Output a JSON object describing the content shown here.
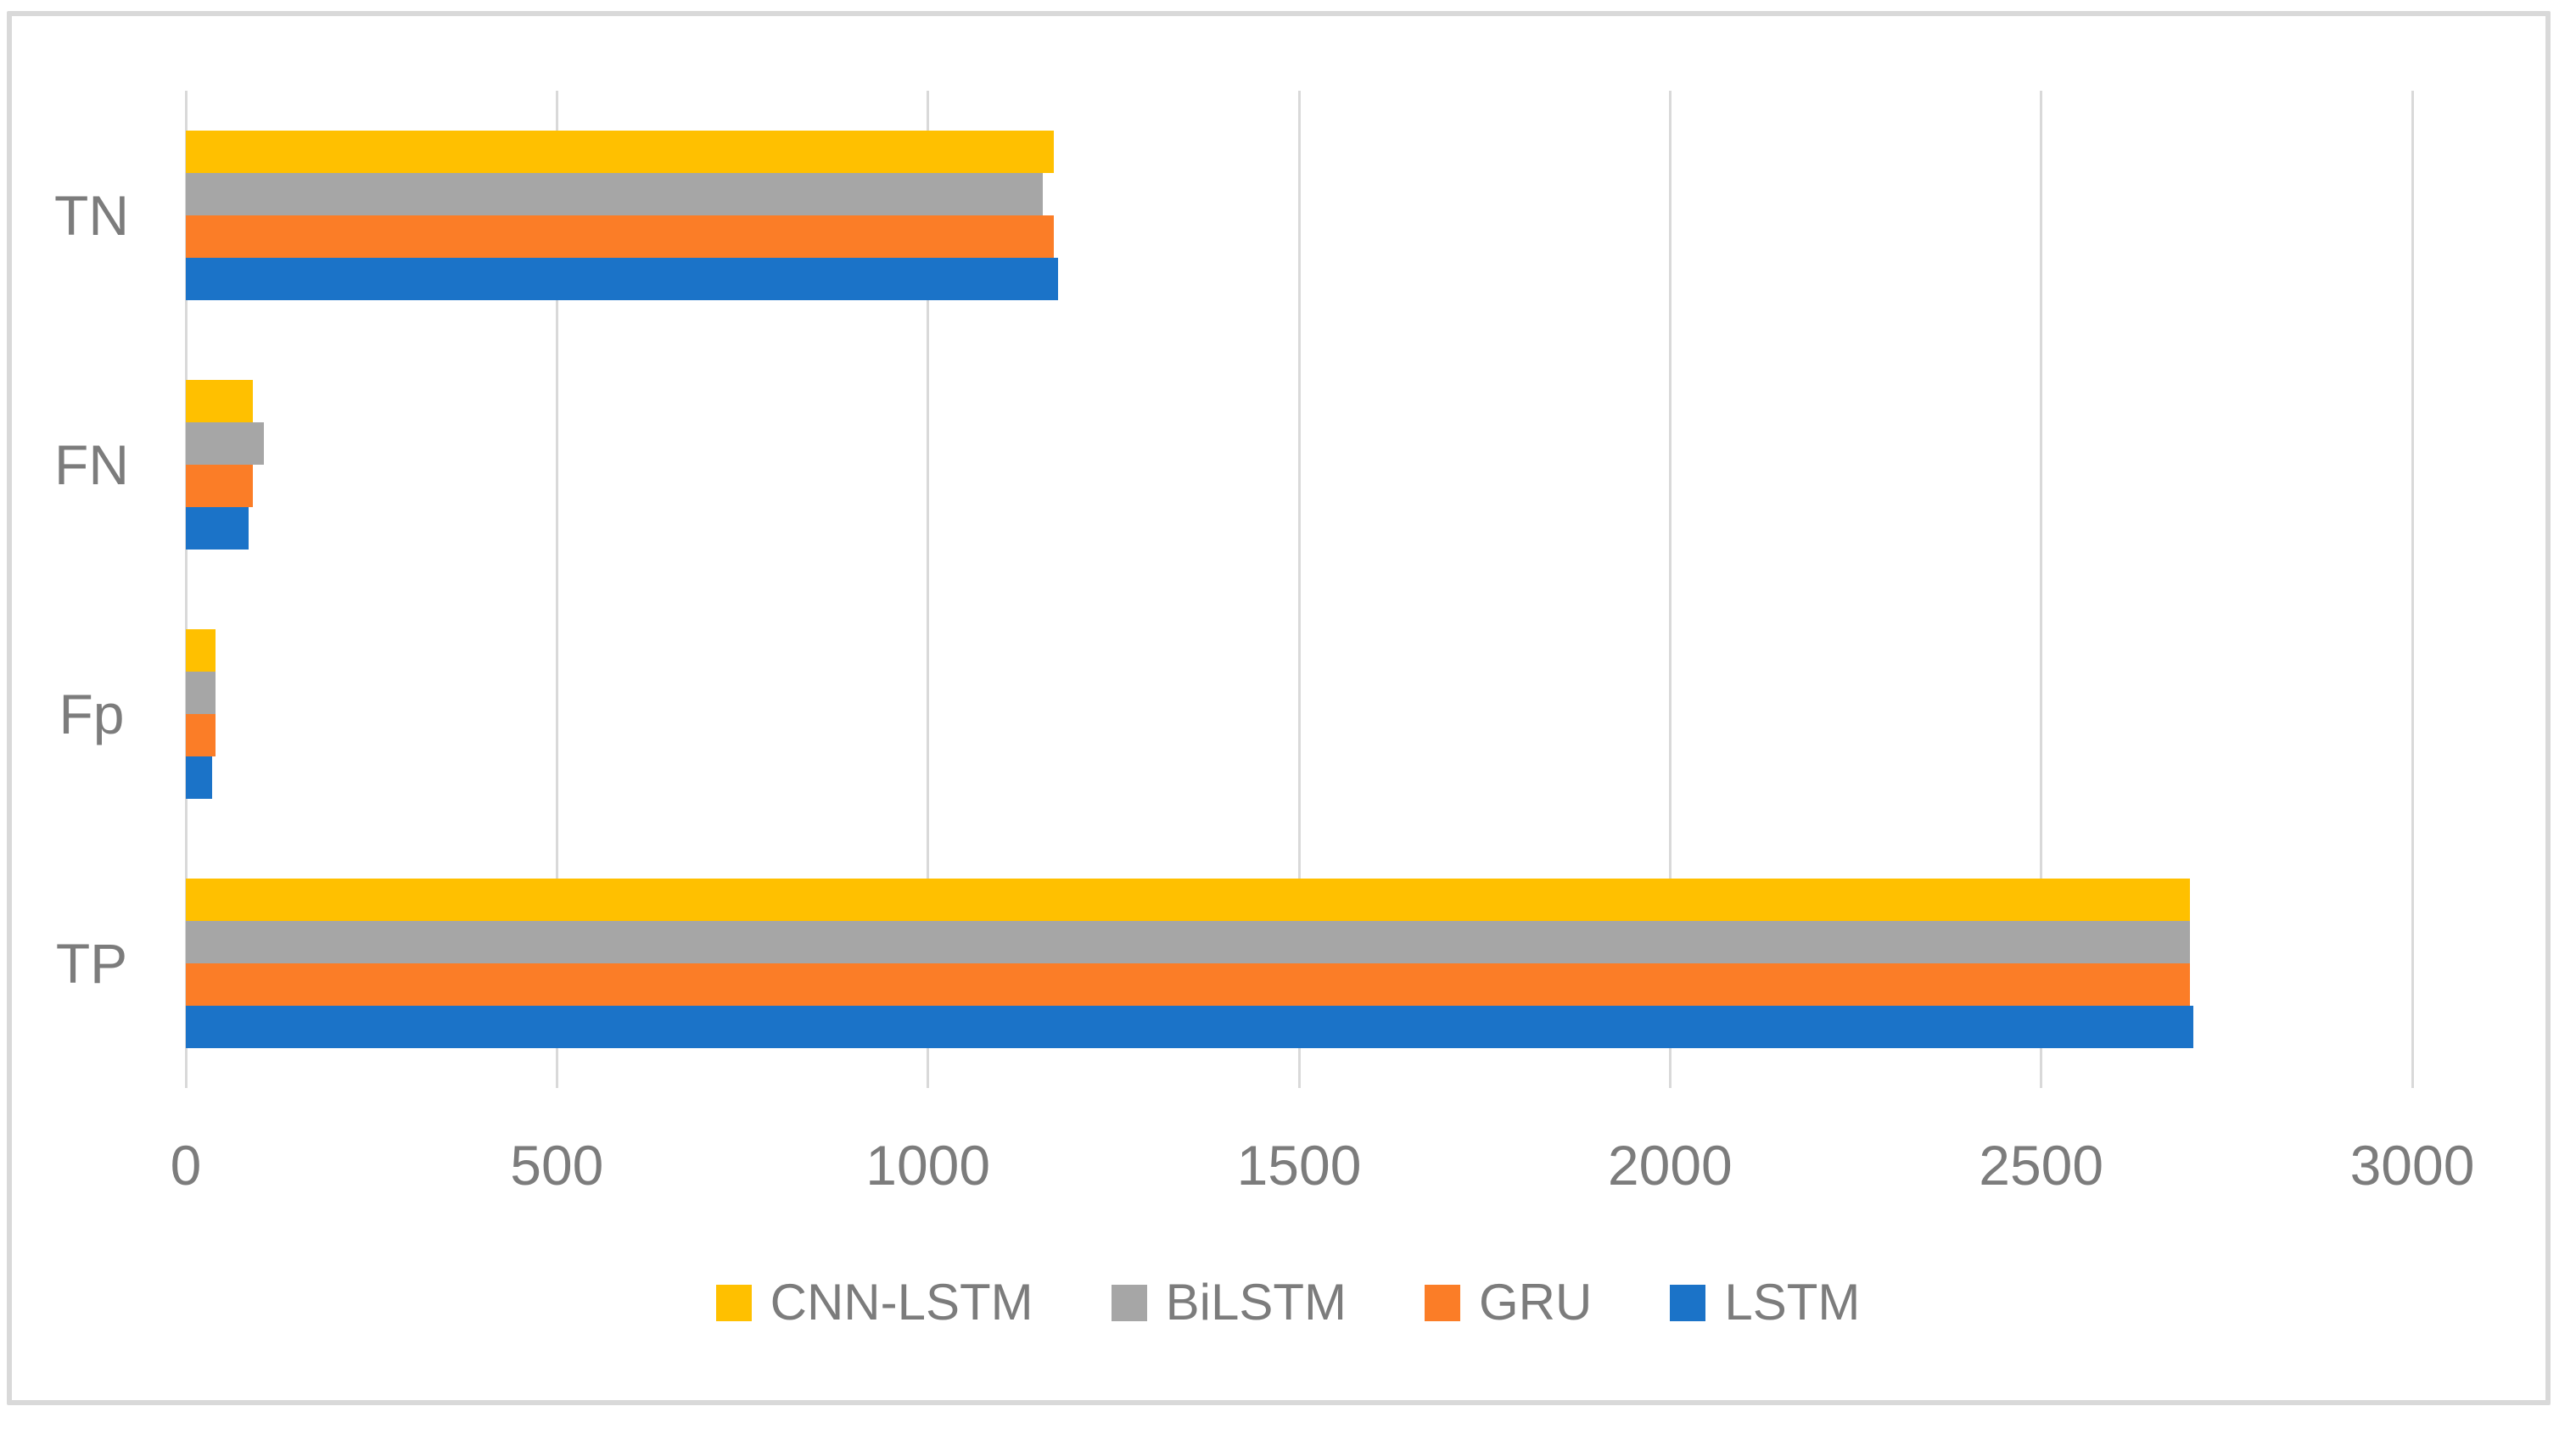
{
  "figure": {
    "description": "Horizontal grouped bar chart comparing confusion-matrix counts (TP, Fp, FN, TN) of four models",
    "background_color": "#FFFFFF",
    "frame_border_color": "#D9D9D9",
    "gridline_color": "#D9D9D9",
    "text_color": "#7C7C7C"
  },
  "chart_data": {
    "type": "bar",
    "orientation": "horizontal",
    "title": "",
    "xlabel": "",
    "ylabel": "",
    "categories": [
      "TN",
      "FN",
      "Fp",
      "TP"
    ],
    "series": [
      {
        "name": "CNN-LSTM",
        "color": "#FFC000",
        "values": [
          1170,
          90,
          40,
          2700
        ]
      },
      {
        "name": "BiLSTM",
        "color": "#A6A6A6",
        "values": [
          1155,
          105,
          40,
          2700
        ]
      },
      {
        "name": "GRU",
        "color": "#FB7D27",
        "values": [
          1170,
          90,
          40,
          2700
        ]
      },
      {
        "name": "LSTM",
        "color": "#1B73C8",
        "values": [
          1175,
          85,
          35,
          2705
        ]
      }
    ],
    "xlim": [
      0,
      3000
    ],
    "x_ticks": [
      "0",
      "500",
      "1000",
      "1500",
      "2000",
      "2500",
      "3000"
    ],
    "grid": true,
    "legend_position": "bottom-center"
  }
}
